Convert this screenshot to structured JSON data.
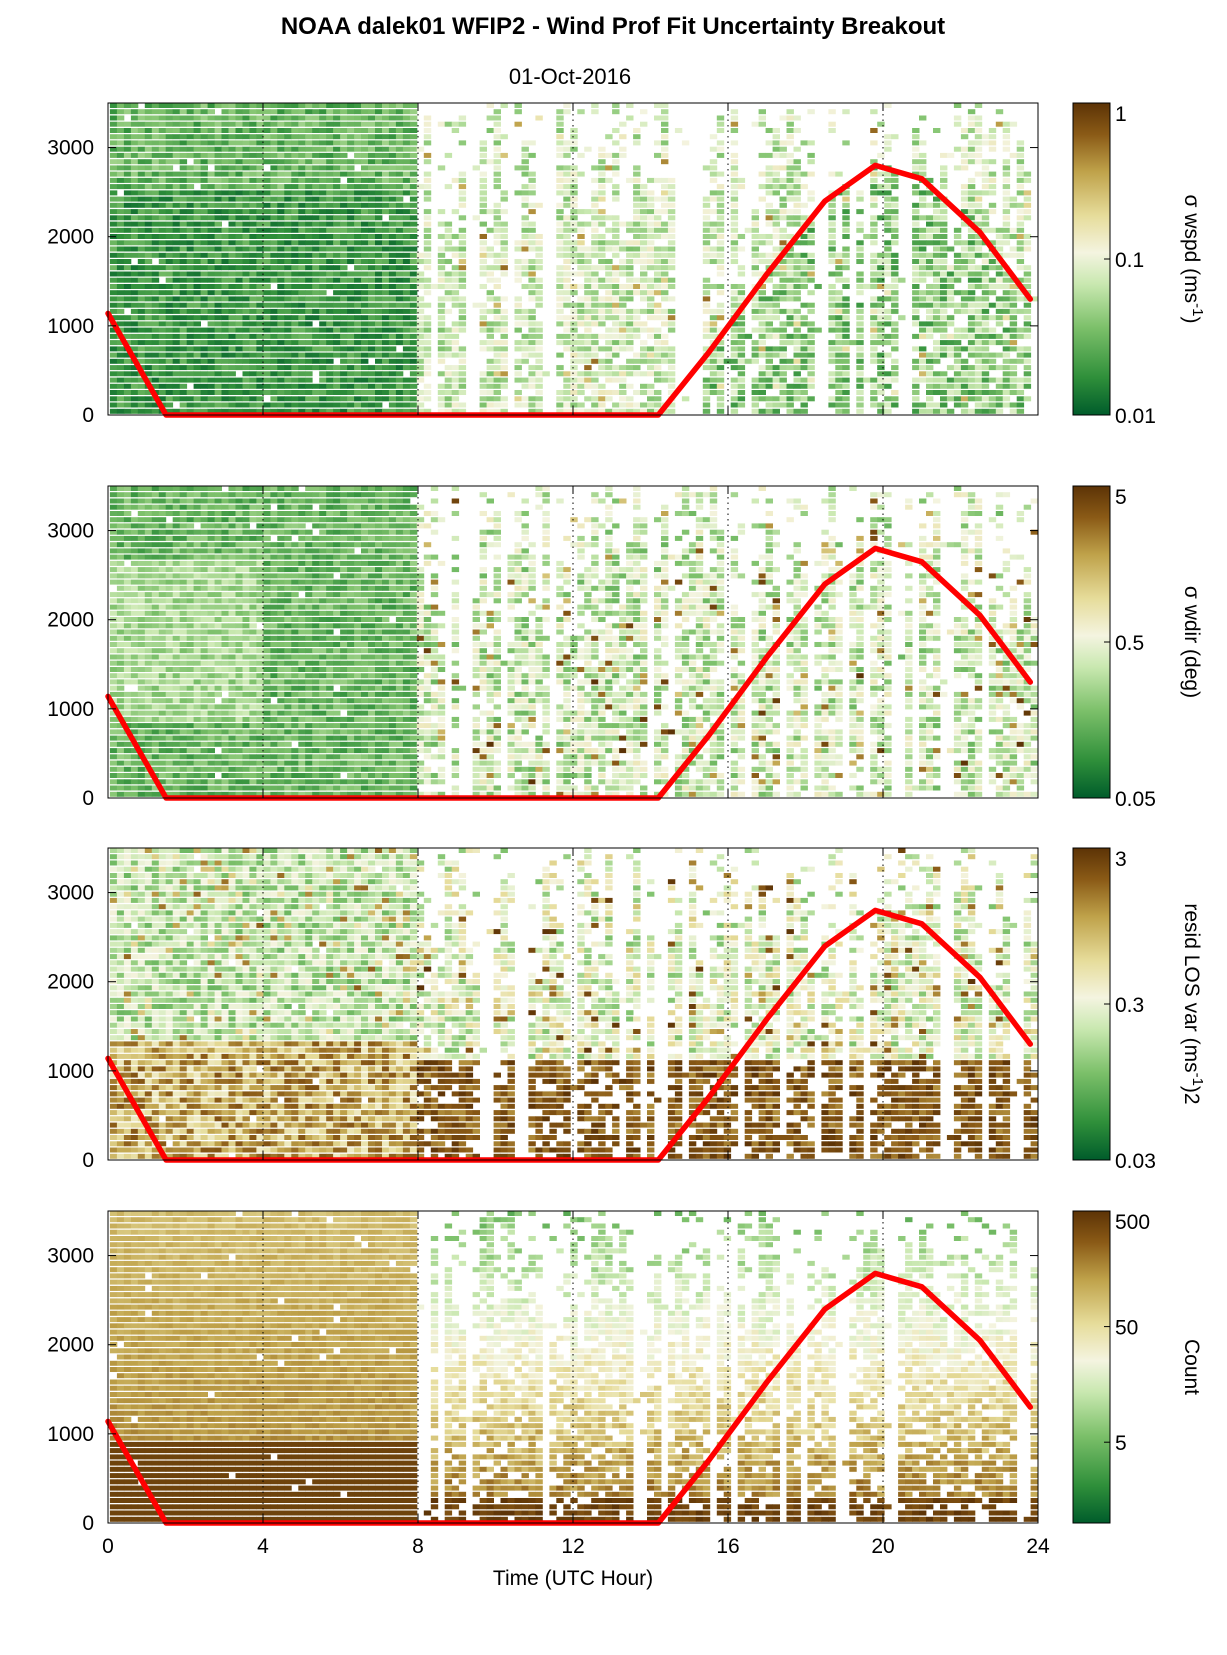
{
  "figure": {
    "title": "NOAA dalek01 WFIP2 - Wind Prof Fit Uncertainty Breakout",
    "subtitle": "01-Oct-2016"
  },
  "colors": {
    "boundary_line": "#ff0000",
    "colormap": [
      "#005c2b",
      "#2f8f3a",
      "#7cc06a",
      "#c9e8b0",
      "#f4f4e0",
      "#e6dc9a",
      "#bfa24a",
      "#8a5a16",
      "#5c3306"
    ]
  },
  "chart_data": [
    {
      "type": "heatmap",
      "title": "",
      "xlabel": "",
      "xlim": [
        0,
        24
      ],
      "xticks": [
        "0",
        "4",
        "8",
        "12",
        "16",
        "20",
        "24"
      ],
      "ylabel": "",
      "ylim": [
        0,
        3500
      ],
      "yticks": [
        "0",
        "1000",
        "2000",
        "3000"
      ],
      "vertical_markers": [
        4,
        8,
        12,
        16,
        20
      ],
      "colorbar": {
        "label": "σ wspd (ms",
        "label_sup": "-1",
        "label_tail": ")",
        "scale": "log",
        "range": [
          0.01,
          1
        ],
        "ticks": [
          "0.01",
          "0.1",
          "1"
        ]
      },
      "overlay": {
        "name": "",
        "points": [
          [
            0,
            1140
          ],
          [
            1.5,
            0
          ],
          [
            14.2,
            0
          ],
          [
            15.5,
            700
          ],
          [
            17,
            1580
          ],
          [
            18.5,
            2400
          ],
          [
            19.8,
            2800
          ],
          [
            21,
            2650
          ],
          [
            22.5,
            2050
          ],
          [
            23.8,
            1300
          ]
        ]
      }
    },
    {
      "type": "heatmap",
      "title": "",
      "xlabel": "",
      "xlim": [
        0,
        24
      ],
      "xticks": [
        "0",
        "4",
        "8",
        "12",
        "16",
        "20",
        "24"
      ],
      "ylabel": "",
      "ylim": [
        0,
        3500
      ],
      "yticks": [
        "0",
        "1000",
        "2000",
        "3000"
      ],
      "vertical_markers": [
        4,
        8,
        12,
        16,
        20
      ],
      "colorbar": {
        "label": "σ wdir (deg)",
        "label_sup": "",
        "label_tail": "",
        "scale": "log",
        "range": [
          0.05,
          5
        ],
        "ticks": [
          "0.05",
          "0.5",
          "5"
        ]
      },
      "overlay": {
        "name": "",
        "points": [
          [
            0,
            1140
          ],
          [
            1.5,
            0
          ],
          [
            14.2,
            0
          ],
          [
            15.5,
            700
          ],
          [
            17,
            1580
          ],
          [
            18.5,
            2400
          ],
          [
            19.8,
            2800
          ],
          [
            21,
            2650
          ],
          [
            22.5,
            2050
          ],
          [
            23.8,
            1300
          ]
        ]
      }
    },
    {
      "type": "heatmap",
      "title": "",
      "xlabel": "",
      "xlim": [
        0,
        24
      ],
      "xticks": [
        "0",
        "4",
        "8",
        "12",
        "16",
        "20",
        "24"
      ],
      "ylabel": "",
      "ylim": [
        0,
        3500
      ],
      "yticks": [
        "0",
        "1000",
        "2000",
        "3000"
      ],
      "vertical_markers": [
        4,
        8,
        12,
        16,
        20
      ],
      "colorbar": {
        "label": "resid LOS var (ms",
        "label_sup": "-1",
        "label_tail": ")2",
        "scale": "log",
        "range": [
          0.03,
          3
        ],
        "ticks": [
          "0.03",
          "0.3",
          "3"
        ]
      },
      "overlay": {
        "name": "",
        "points": [
          [
            0,
            1140
          ],
          [
            1.5,
            0
          ],
          [
            14.2,
            0
          ],
          [
            15.5,
            700
          ],
          [
            17,
            1580
          ],
          [
            18.5,
            2400
          ],
          [
            19.8,
            2800
          ],
          [
            21,
            2650
          ],
          [
            22.5,
            2050
          ],
          [
            23.8,
            1300
          ]
        ]
      }
    },
    {
      "type": "heatmap",
      "title": "",
      "xlabel": "Time (UTC Hour)",
      "xlim": [
        0,
        24
      ],
      "xticks": [
        "0",
        "4",
        "8",
        "12",
        "16",
        "20",
        "24"
      ],
      "ylabel": "",
      "ylim": [
        0,
        3500
      ],
      "yticks": [
        "0",
        "1000",
        "2000",
        "3000"
      ],
      "vertical_markers": [
        4,
        8,
        12,
        16,
        20
      ],
      "colorbar": {
        "label": "Count",
        "label_sup": "",
        "label_tail": "",
        "scale": "log",
        "range": [
          1,
          500
        ],
        "ticks": [
          "5",
          "50",
          "500"
        ]
      },
      "overlay": {
        "name": "",
        "points": [
          [
            0,
            1140
          ],
          [
            1.5,
            0
          ],
          [
            14.2,
            0
          ],
          [
            15.5,
            700
          ],
          [
            17,
            1580
          ],
          [
            18.5,
            2400
          ],
          [
            19.8,
            2800
          ],
          [
            21,
            2650
          ],
          [
            22.5,
            2050
          ],
          [
            23.8,
            1300
          ]
        ]
      }
    }
  ]
}
